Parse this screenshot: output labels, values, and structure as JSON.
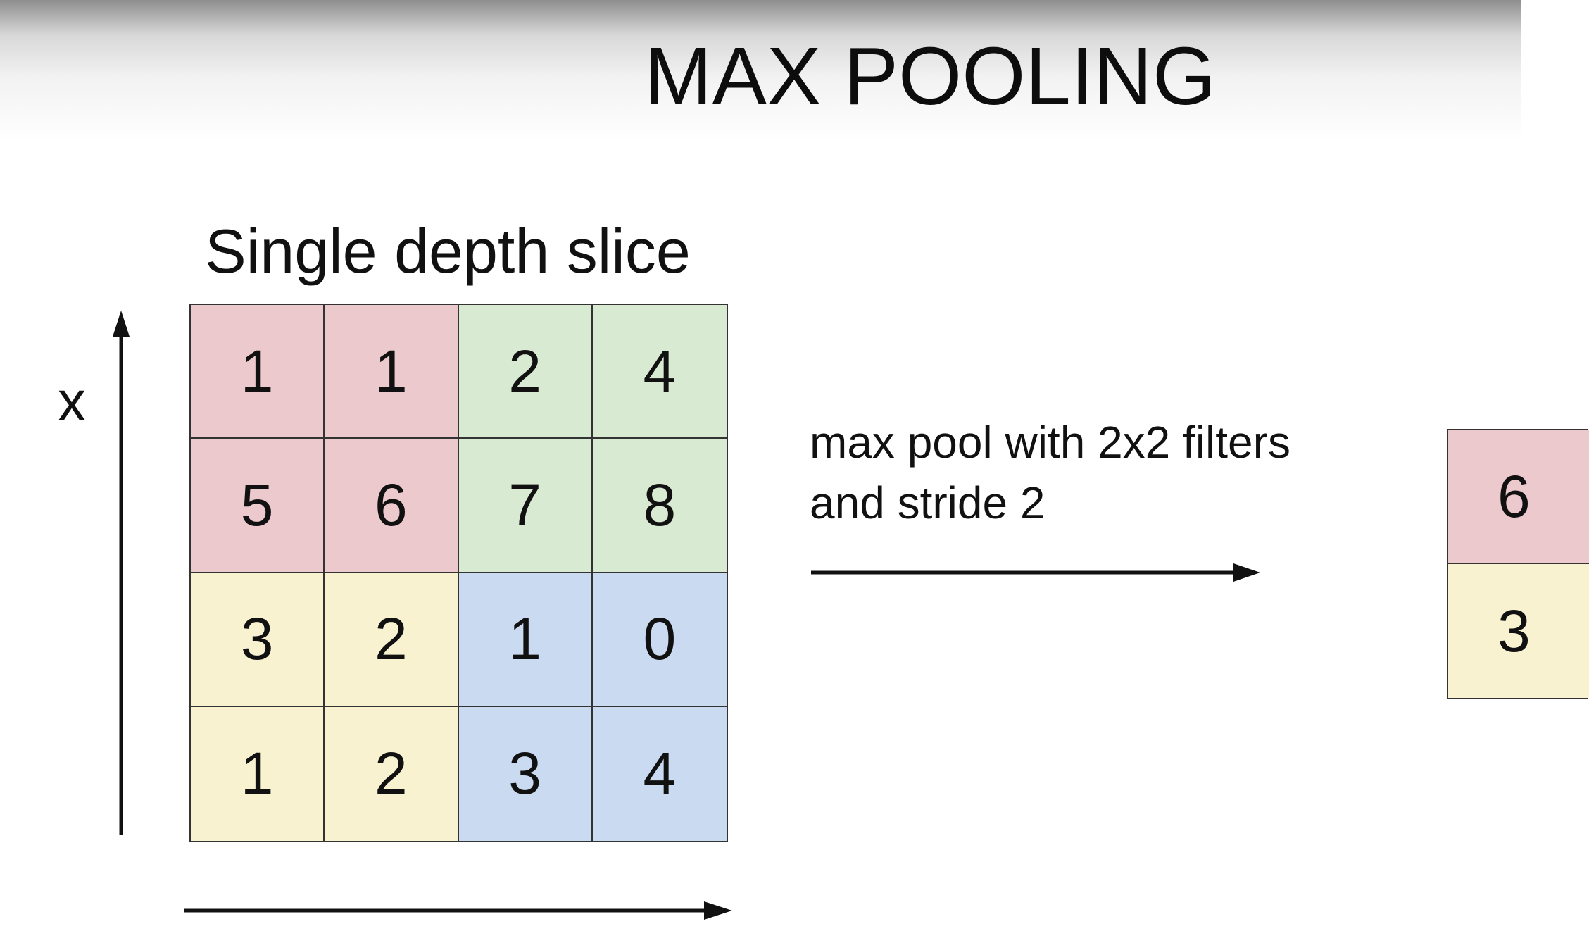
{
  "title": "MAX POOLING",
  "input": {
    "caption": "Single depth slice",
    "y_axis_label": "x",
    "rows": [
      [
        {
          "value": "1",
          "color": "#ecc9cc"
        },
        {
          "value": "1",
          "color": "#ecc9cc"
        },
        {
          "value": "2",
          "color": "#d9ead3"
        },
        {
          "value": "4",
          "color": "#d9ead3"
        }
      ],
      [
        {
          "value": "5",
          "color": "#ecc9cc"
        },
        {
          "value": "6",
          "color": "#ecc9cc"
        },
        {
          "value": "7",
          "color": "#d9ead3"
        },
        {
          "value": "8",
          "color": "#d9ead3"
        }
      ],
      [
        {
          "value": "3",
          "color": "#f9f2d1"
        },
        {
          "value": "2",
          "color": "#f9f2d1"
        },
        {
          "value": "1",
          "color": "#c9daf1"
        },
        {
          "value": "0",
          "color": "#c9daf1"
        }
      ],
      [
        {
          "value": "1",
          "color": "#f9f2d1"
        },
        {
          "value": "2",
          "color": "#f9f2d1"
        },
        {
          "value": "3",
          "color": "#c9daf1"
        },
        {
          "value": "4",
          "color": "#c9daf1"
        }
      ]
    ]
  },
  "operation": {
    "line1": "max pool with 2x2 filters",
    "line2": "and stride 2"
  },
  "output": {
    "cells": [
      {
        "value": "6",
        "color": "#ecc9cc"
      },
      {
        "value": "3",
        "color": "#f9f2d1"
      }
    ]
  }
}
